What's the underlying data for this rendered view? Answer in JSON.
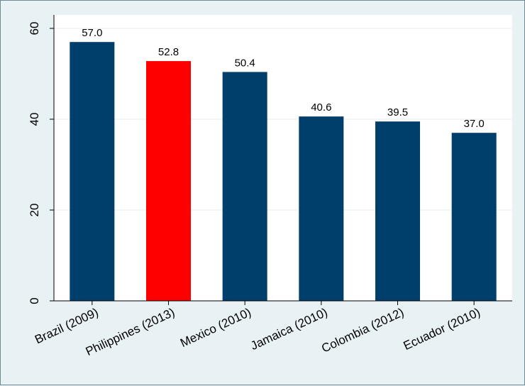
{
  "chart_data": {
    "type": "bar",
    "categories": [
      "Brazil (2009)",
      "Philippines (2013)",
      "Mexico (2010)",
      "Jamaica (2010)",
      "Colombia (2012)",
      "Ecuador (2010)"
    ],
    "values": [
      57.0,
      52.8,
      50.4,
      40.6,
      39.5,
      37.0
    ],
    "data_labels": [
      "57.0",
      "52.8",
      "50.4",
      "40.6",
      "39.5",
      "37.0"
    ],
    "bar_colors": [
      "#003f6b",
      "#ff0000",
      "#003f6b",
      "#003f6b",
      "#003f6b",
      "#003f6b"
    ],
    "highlight_color": "#ff0000",
    "default_color": "#003f6b",
    "y_ticks": [
      0,
      20,
      40,
      60
    ],
    "y_tick_labels": [
      "0",
      "20",
      "40",
      "60"
    ],
    "ylim": [
      0,
      60
    ],
    "grid": true,
    "title": "",
    "xlabel": "",
    "ylabel": ""
  }
}
